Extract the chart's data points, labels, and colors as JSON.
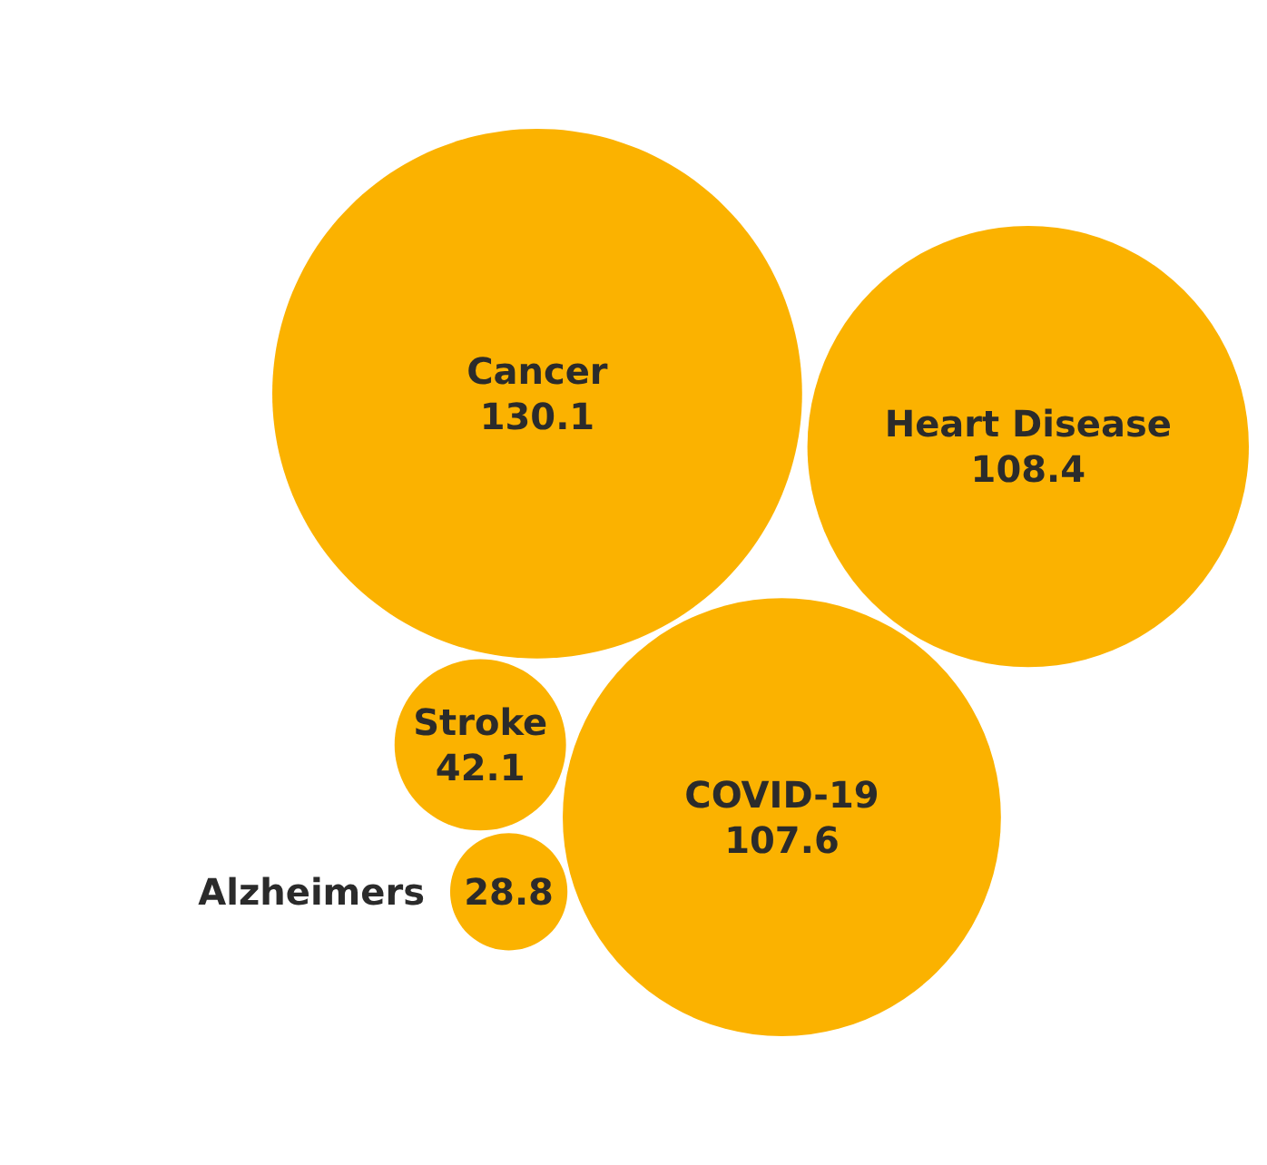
{
  "chart_data": {
    "type": "other",
    "categories": [
      "Cancer",
      "Heart Disease",
      "COVID-19",
      "Stroke",
      "Alzheimers"
    ],
    "values": [
      130.1,
      108.4,
      107.6,
      42.1,
      28.8
    ],
    "colors": [
      "#fbb200",
      "#fbb200",
      "#fbb200",
      "#fbb200",
      "#fbb200"
    ],
    "data_labels": true
  }
}
